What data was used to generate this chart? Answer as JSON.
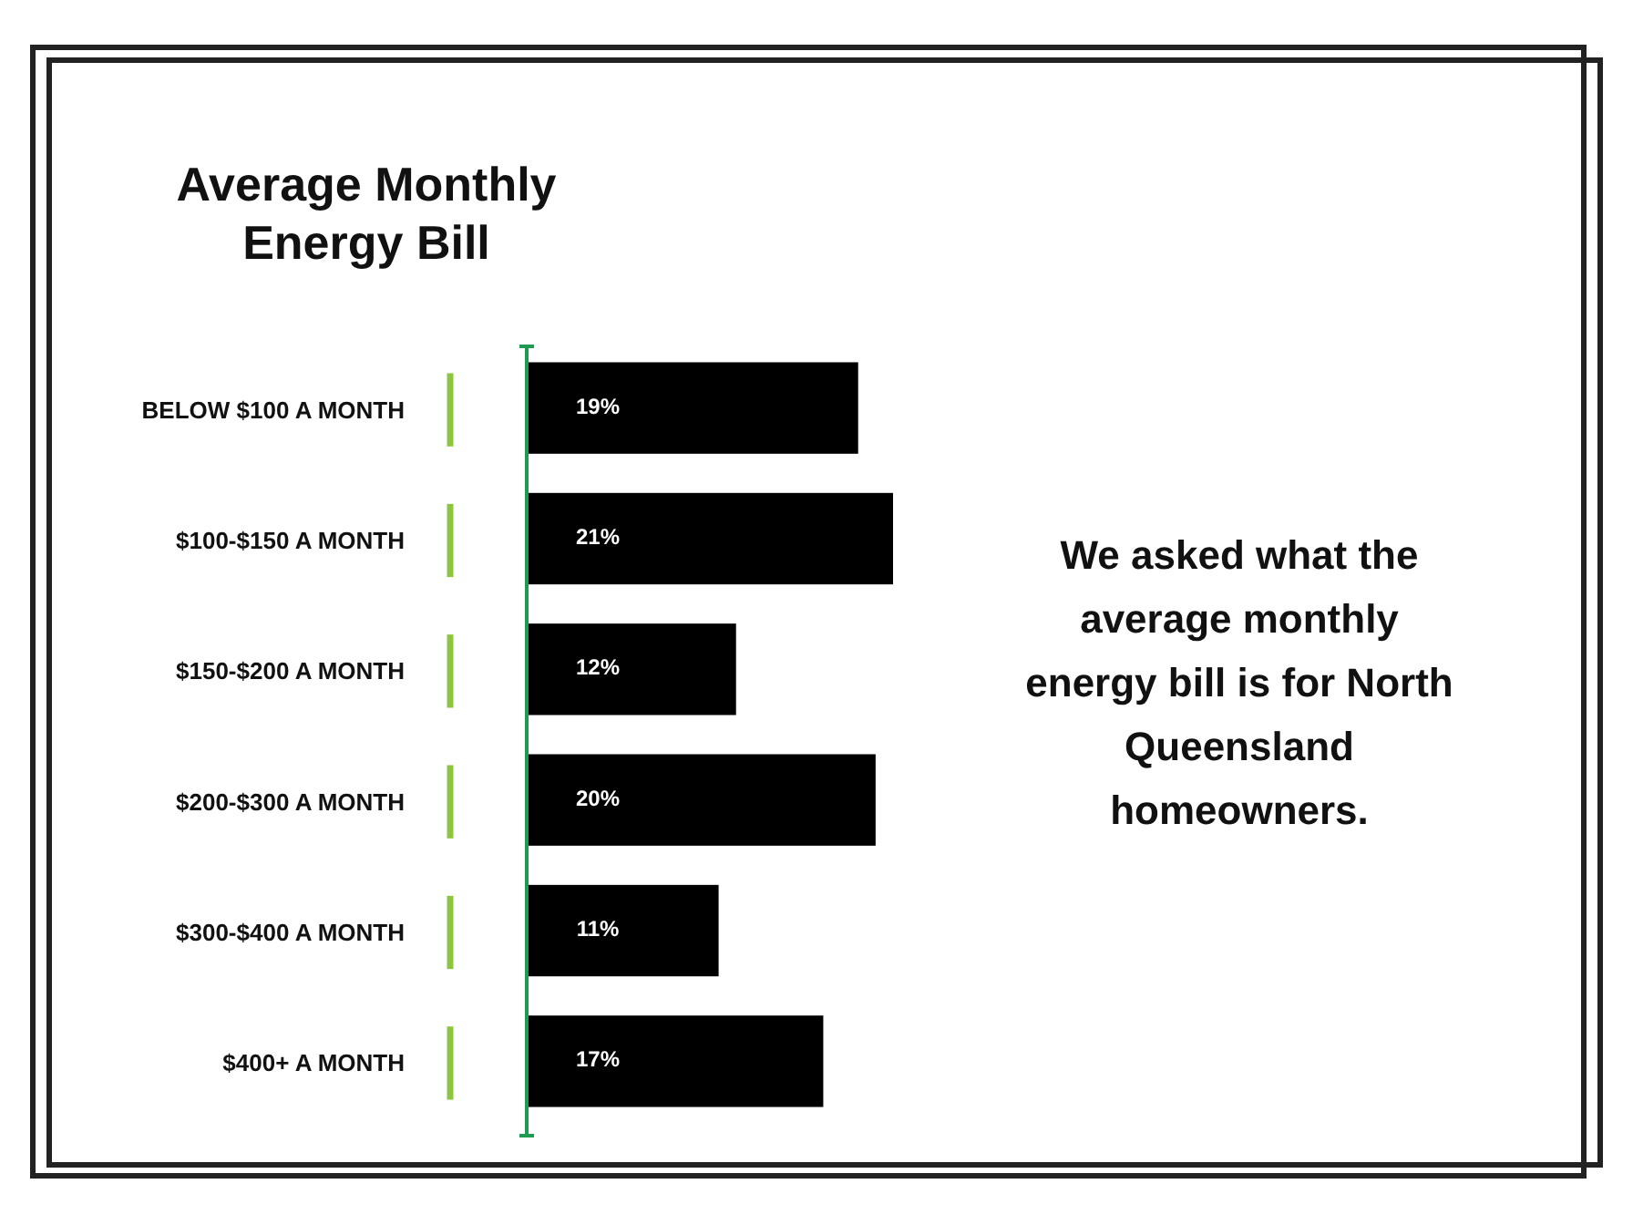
{
  "chart_data": {
    "type": "bar",
    "orientation": "horizontal",
    "title": "Average Monthly Energy Bill",
    "categories": [
      "BELOW $100 A MONTH",
      "$100-$150 A MONTH",
      "$150-$200 A MONTH",
      "$200-$300 A MONTH",
      "$300-$400 A MONTH",
      "$400+ A MONTH"
    ],
    "values": [
      19,
      21,
      12,
      20,
      11,
      17
    ],
    "color": "#000000",
    "value_labels": [
      "19%",
      "21%",
      "12%",
      "20%",
      "11%",
      "17%"
    ],
    "annotations": [
      "We asked what the average monthly energy bill is for North Queensland homeowners."
    ]
  }
}
